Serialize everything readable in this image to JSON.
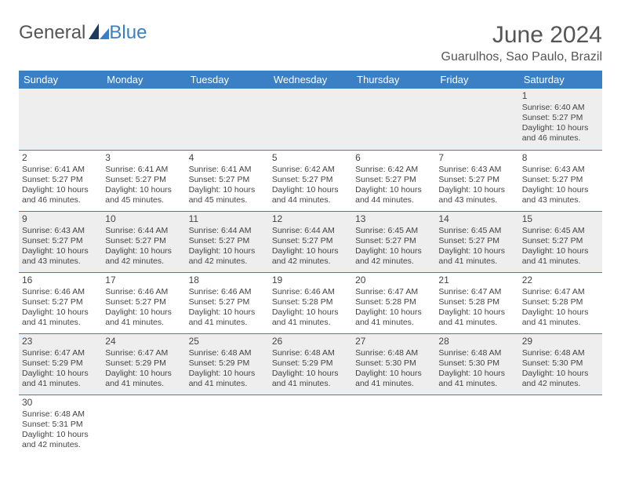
{
  "logo": {
    "word1": "General",
    "word2": "Blue"
  },
  "title": "June 2024",
  "location": "Guarulhos, Sao Paulo, Brazil",
  "colors": {
    "header_bg": "#3b7fc4",
    "row_alt": "#eeeeee",
    "row_bg": "#ffffff",
    "border": "#3b7fc4",
    "text": "#444444"
  },
  "day_headers": [
    "Sunday",
    "Monday",
    "Tuesday",
    "Wednesday",
    "Thursday",
    "Friday",
    "Saturday"
  ],
  "weeks": [
    [
      null,
      null,
      null,
      null,
      null,
      null,
      {
        "n": "1",
        "sr": "6:40 AM",
        "ss": "5:27 PM",
        "dl": "10 hours and 46 minutes."
      }
    ],
    [
      {
        "n": "2",
        "sr": "6:41 AM",
        "ss": "5:27 PM",
        "dl": "10 hours and 46 minutes."
      },
      {
        "n": "3",
        "sr": "6:41 AM",
        "ss": "5:27 PM",
        "dl": "10 hours and 45 minutes."
      },
      {
        "n": "4",
        "sr": "6:41 AM",
        "ss": "5:27 PM",
        "dl": "10 hours and 45 minutes."
      },
      {
        "n": "5",
        "sr": "6:42 AM",
        "ss": "5:27 PM",
        "dl": "10 hours and 44 minutes."
      },
      {
        "n": "6",
        "sr": "6:42 AM",
        "ss": "5:27 PM",
        "dl": "10 hours and 44 minutes."
      },
      {
        "n": "7",
        "sr": "6:43 AM",
        "ss": "5:27 PM",
        "dl": "10 hours and 43 minutes."
      },
      {
        "n": "8",
        "sr": "6:43 AM",
        "ss": "5:27 PM",
        "dl": "10 hours and 43 minutes."
      }
    ],
    [
      {
        "n": "9",
        "sr": "6:43 AM",
        "ss": "5:27 PM",
        "dl": "10 hours and 43 minutes."
      },
      {
        "n": "10",
        "sr": "6:44 AM",
        "ss": "5:27 PM",
        "dl": "10 hours and 42 minutes."
      },
      {
        "n": "11",
        "sr": "6:44 AM",
        "ss": "5:27 PM",
        "dl": "10 hours and 42 minutes."
      },
      {
        "n": "12",
        "sr": "6:44 AM",
        "ss": "5:27 PM",
        "dl": "10 hours and 42 minutes."
      },
      {
        "n": "13",
        "sr": "6:45 AM",
        "ss": "5:27 PM",
        "dl": "10 hours and 42 minutes."
      },
      {
        "n": "14",
        "sr": "6:45 AM",
        "ss": "5:27 PM",
        "dl": "10 hours and 41 minutes."
      },
      {
        "n": "15",
        "sr": "6:45 AM",
        "ss": "5:27 PM",
        "dl": "10 hours and 41 minutes."
      }
    ],
    [
      {
        "n": "16",
        "sr": "6:46 AM",
        "ss": "5:27 PM",
        "dl": "10 hours and 41 minutes."
      },
      {
        "n": "17",
        "sr": "6:46 AM",
        "ss": "5:27 PM",
        "dl": "10 hours and 41 minutes."
      },
      {
        "n": "18",
        "sr": "6:46 AM",
        "ss": "5:27 PM",
        "dl": "10 hours and 41 minutes."
      },
      {
        "n": "19",
        "sr": "6:46 AM",
        "ss": "5:28 PM",
        "dl": "10 hours and 41 minutes."
      },
      {
        "n": "20",
        "sr": "6:47 AM",
        "ss": "5:28 PM",
        "dl": "10 hours and 41 minutes."
      },
      {
        "n": "21",
        "sr": "6:47 AM",
        "ss": "5:28 PM",
        "dl": "10 hours and 41 minutes."
      },
      {
        "n": "22",
        "sr": "6:47 AM",
        "ss": "5:28 PM",
        "dl": "10 hours and 41 minutes."
      }
    ],
    [
      {
        "n": "23",
        "sr": "6:47 AM",
        "ss": "5:29 PM",
        "dl": "10 hours and 41 minutes."
      },
      {
        "n": "24",
        "sr": "6:47 AM",
        "ss": "5:29 PM",
        "dl": "10 hours and 41 minutes."
      },
      {
        "n": "25",
        "sr": "6:48 AM",
        "ss": "5:29 PM",
        "dl": "10 hours and 41 minutes."
      },
      {
        "n": "26",
        "sr": "6:48 AM",
        "ss": "5:29 PM",
        "dl": "10 hours and 41 minutes."
      },
      {
        "n": "27",
        "sr": "6:48 AM",
        "ss": "5:30 PM",
        "dl": "10 hours and 41 minutes."
      },
      {
        "n": "28",
        "sr": "6:48 AM",
        "ss": "5:30 PM",
        "dl": "10 hours and 41 minutes."
      },
      {
        "n": "29",
        "sr": "6:48 AM",
        "ss": "5:30 PM",
        "dl": "10 hours and 42 minutes."
      }
    ],
    [
      {
        "n": "30",
        "sr": "6:48 AM",
        "ss": "5:31 PM",
        "dl": "10 hours and 42 minutes."
      },
      null,
      null,
      null,
      null,
      null,
      null
    ]
  ],
  "labels": {
    "sunrise": "Sunrise: ",
    "sunset": "Sunset: ",
    "daylight": "Daylight: "
  }
}
